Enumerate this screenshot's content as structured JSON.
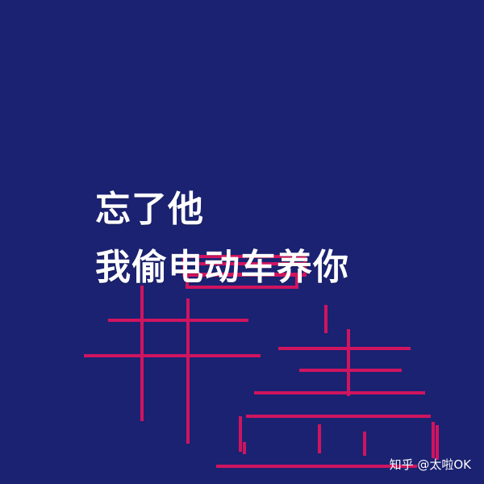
{
  "headline": {
    "line1": "忘了他",
    "line2_prefix": "我偷",
    "line2_struck": "电动车",
    "line2_suffix": "养你"
  },
  "watermark": "知乎 @太啦OK",
  "colors": {
    "background": "#1b2272",
    "text": "#ffffff",
    "accent": "#d0145f"
  }
}
